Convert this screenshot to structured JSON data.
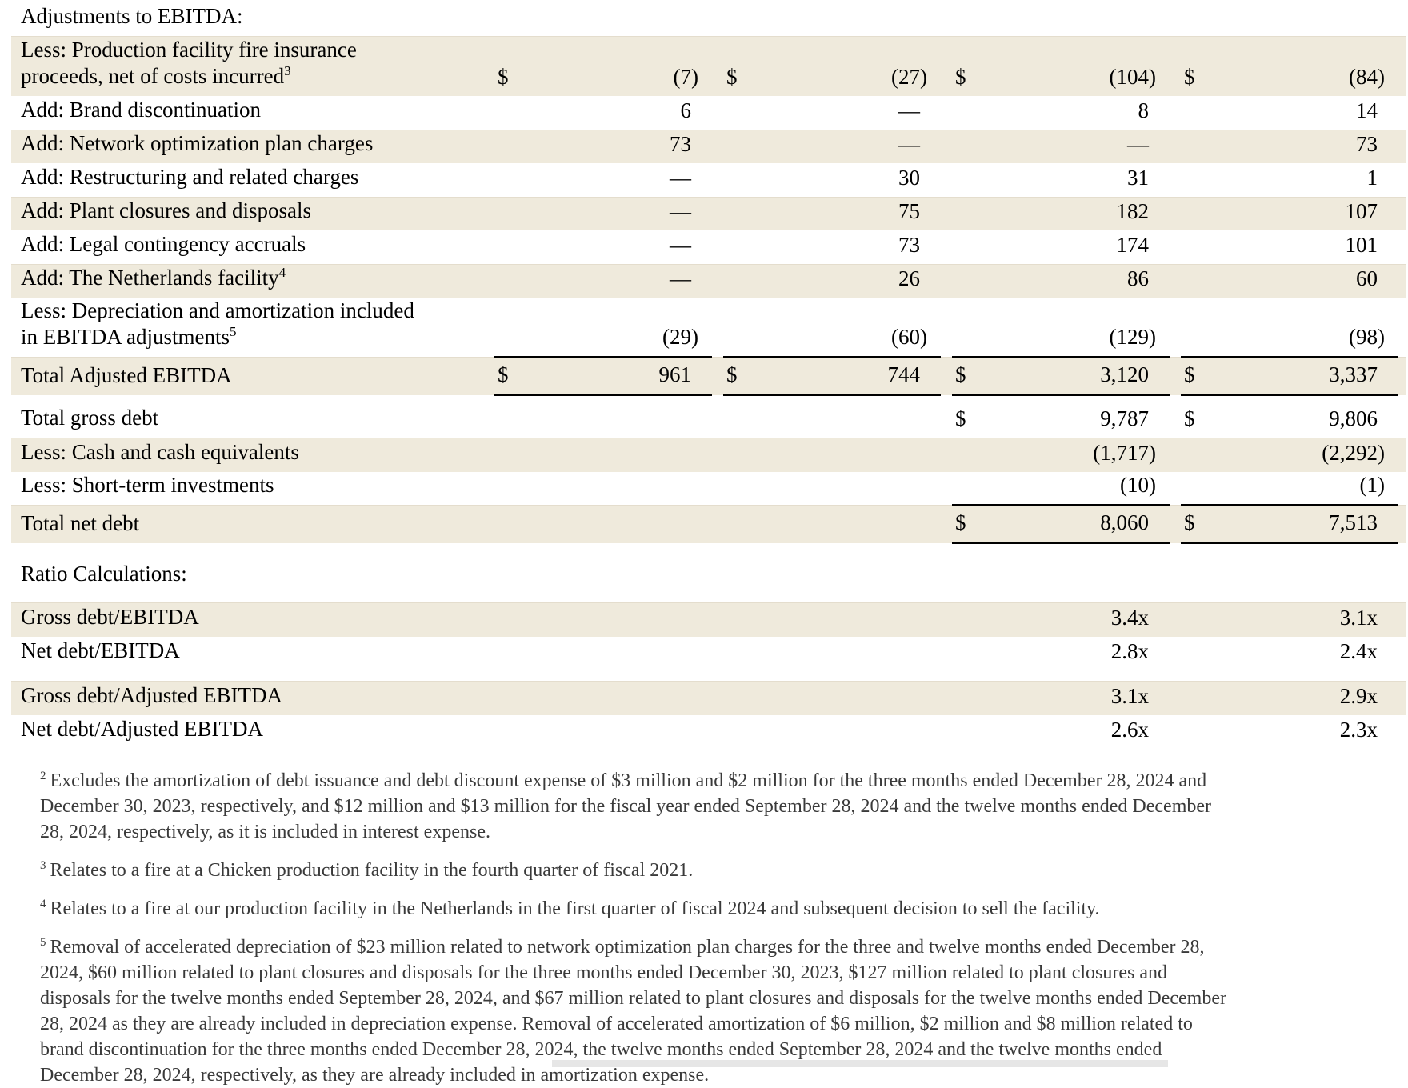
{
  "colors": {
    "row_shade": "#efeadc"
  },
  "table_rows": [
    {
      "type": "section_header",
      "label": "Adjustments to EBITDA:"
    },
    {
      "type": "data",
      "shaded": true,
      "label_lines": [
        "Less: Production facility fire insurance",
        "proceeds, net of costs incurred"
      ],
      "label_sup": "3",
      "dollars": [
        "$",
        "$",
        "$",
        "$"
      ],
      "values": [
        "(7)",
        "(27)",
        "(104)",
        "(84)"
      ]
    },
    {
      "type": "data",
      "label_lines": [
        "Add: Brand discontinuation"
      ],
      "values": [
        "6",
        "—",
        "8",
        "14"
      ]
    },
    {
      "type": "data",
      "shaded": true,
      "label_lines": [
        "Add: Network optimization plan charges"
      ],
      "values": [
        "73",
        "—",
        "—",
        "73"
      ]
    },
    {
      "type": "data",
      "label_lines": [
        "Add: Restructuring and related charges"
      ],
      "values": [
        "—",
        "30",
        "31",
        "1"
      ]
    },
    {
      "type": "data",
      "shaded": true,
      "label_lines": [
        "Add: Plant closures and disposals"
      ],
      "values": [
        "—",
        "75",
        "182",
        "107"
      ]
    },
    {
      "type": "data",
      "label_lines": [
        "Add: Legal contingency accruals"
      ],
      "values": [
        "—",
        "73",
        "174",
        "101"
      ]
    },
    {
      "type": "data",
      "shaded": true,
      "label_lines": [
        "Add: The Netherlands facility"
      ],
      "label_sup": "4",
      "values": [
        "—",
        "26",
        "86",
        "60"
      ]
    },
    {
      "type": "data",
      "label_lines": [
        "Less: Depreciation and amortization included",
        "in EBITDA adjustments"
      ],
      "label_sup": "5",
      "values": [
        "(29)",
        "(60)",
        "(129)",
        "(98)"
      ]
    },
    {
      "type": "data",
      "shaded": true,
      "tall": true,
      "label_lines": [
        "Total Adjusted EBITDA"
      ],
      "dollars": [
        "$",
        "$",
        "$",
        "$"
      ],
      "values": [
        "961",
        "744",
        "3,120",
        "3,337"
      ],
      "rule_top": [
        true,
        true,
        true,
        true
      ],
      "rule_bottom": [
        true,
        true,
        true,
        true
      ]
    },
    {
      "type": "spacer",
      "height": 12
    },
    {
      "type": "data",
      "label_lines": [
        "Total gross debt"
      ],
      "dollars": [
        "",
        "",
        "$",
        "$"
      ],
      "values": [
        "",
        "",
        "9,787",
        "9,806"
      ]
    },
    {
      "type": "data",
      "shaded": true,
      "label_lines": [
        "Less: Cash and cash equivalents"
      ],
      "values": [
        "",
        "",
        "(1,717)",
        "(2,292)"
      ]
    },
    {
      "type": "data",
      "label_lines": [
        "Less: Short-term investments"
      ],
      "values": [
        "",
        "",
        "(10)",
        "(1)"
      ]
    },
    {
      "type": "data",
      "shaded": true,
      "tall": true,
      "label_lines": [
        "Total net debt"
      ],
      "dollars": [
        "",
        "",
        "$",
        "$"
      ],
      "values": [
        "",
        "",
        "8,060",
        "7,513"
      ],
      "rule_top": [
        false,
        false,
        true,
        true
      ],
      "rule_bottom": [
        false,
        false,
        true,
        true
      ]
    },
    {
      "type": "spacer",
      "height": 22
    },
    {
      "type": "section_header",
      "label": "Ratio Calculations:"
    },
    {
      "type": "spacer",
      "height": 12
    },
    {
      "type": "data",
      "shaded": true,
      "label_lines": [
        "Gross debt/EBITDA"
      ],
      "values": [
        "",
        "",
        "3.4x",
        "3.1x"
      ]
    },
    {
      "type": "data",
      "label_lines": [
        "Net debt/EBITDA"
      ],
      "values": [
        "",
        "",
        "2.8x",
        "2.4x"
      ]
    },
    {
      "type": "spacer",
      "height": 14
    },
    {
      "type": "data",
      "shaded": true,
      "label_lines": [
        "Gross debt/Adjusted EBITDA"
      ],
      "values": [
        "",
        "",
        "3.1x",
        "2.9x"
      ]
    },
    {
      "type": "data",
      "label_lines": [
        "Net debt/Adjusted EBITDA"
      ],
      "values": [
        "",
        "",
        "2.6x",
        "2.3x"
      ]
    }
  ],
  "footnotes": [
    {
      "sup": "2",
      "text": "Excludes the amortization of debt issuance and debt discount expense of $3 million and $2 million for the three months ended December 28, 2024 and December 30, 2023, respectively, and $12 million and $13 million for the fiscal year ended September 28, 2024 and the twelve months ended December 28, 2024, respectively, as it is included in interest expense."
    },
    {
      "sup": "3",
      "text": "Relates to a fire at a Chicken production facility in the fourth quarter of fiscal 2021."
    },
    {
      "sup": "4",
      "text": "Relates to a fire at our production facility in the Netherlands in the first quarter of fiscal 2024 and subsequent decision to sell the facility."
    },
    {
      "sup": "5",
      "text": "Removal of accelerated depreciation of $23 million related to network optimization plan charges for the three and twelve months ended December 28, 2024, $60 million related to plant closures and disposals for the three months ended December 30, 2023, $127 million related to plant closures and disposals for the twelve months ended September 28, 2024, and $67 million related to plant closures and disposals for the twelve months ended December 28, 2024 as they are already included in depreciation expense. Removal of accelerated amortization of $6 million, $2 million and $8 million related to brand discontinuation for the three months ended December 28, 2024, the twelve months ended September 28, 2024 and the twelve months ended December 28, 2024, respectively, as they are already included in amortization expense."
    }
  ]
}
